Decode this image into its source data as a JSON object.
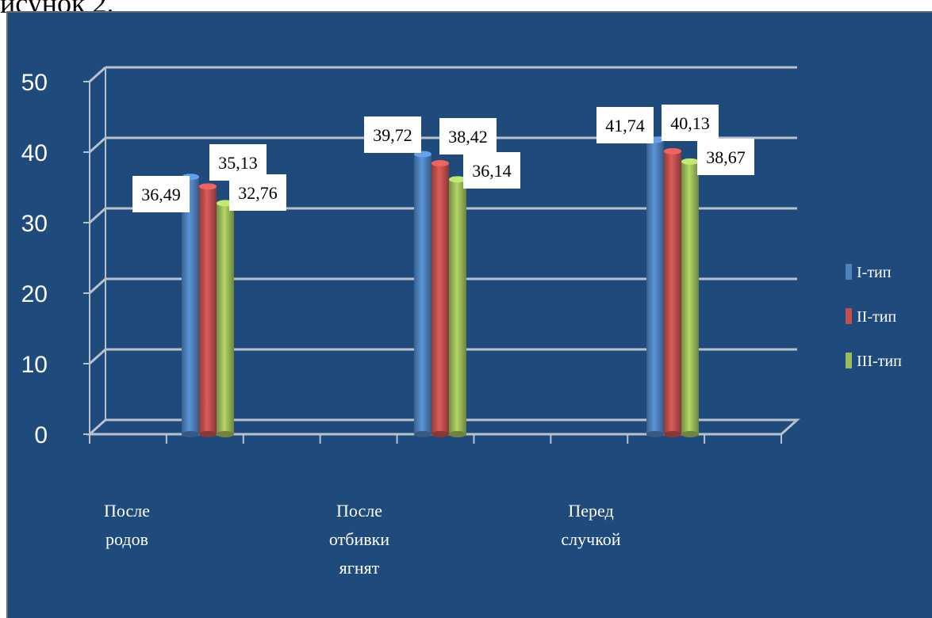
{
  "caption_fragment": "исунок 2.",
  "chart_data": {
    "type": "bar",
    "title": "",
    "xlabel": "",
    "ylabel": "",
    "ylim": [
      0,
      50
    ],
    "yticks": [
      "0",
      "10",
      "20",
      "30",
      "40",
      "50"
    ],
    "grid": true,
    "legend_position": "right",
    "categories": [
      [
        "После",
        "родов"
      ],
      [
        "После",
        "отбивки",
        "ягнят"
      ],
      [
        "Перед",
        "случкой"
      ]
    ],
    "series": [
      {
        "name": "I-тип",
        "color": "#4f81bd",
        "values": [
          36.49,
          39.72,
          41.74
        ],
        "labels": [
          "36,49",
          "39,72",
          "41,74"
        ]
      },
      {
        "name": "II-тип",
        "color": "#c0504d",
        "values": [
          35.13,
          38.42,
          40.13
        ],
        "labels": [
          "35,13",
          "38,42",
          "40,13"
        ]
      },
      {
        "name": "III-тип",
        "color": "#9bbb59",
        "values": [
          32.76,
          36.14,
          38.67
        ],
        "labels": [
          "32,76",
          "36,14",
          "38,67"
        ]
      }
    ]
  }
}
